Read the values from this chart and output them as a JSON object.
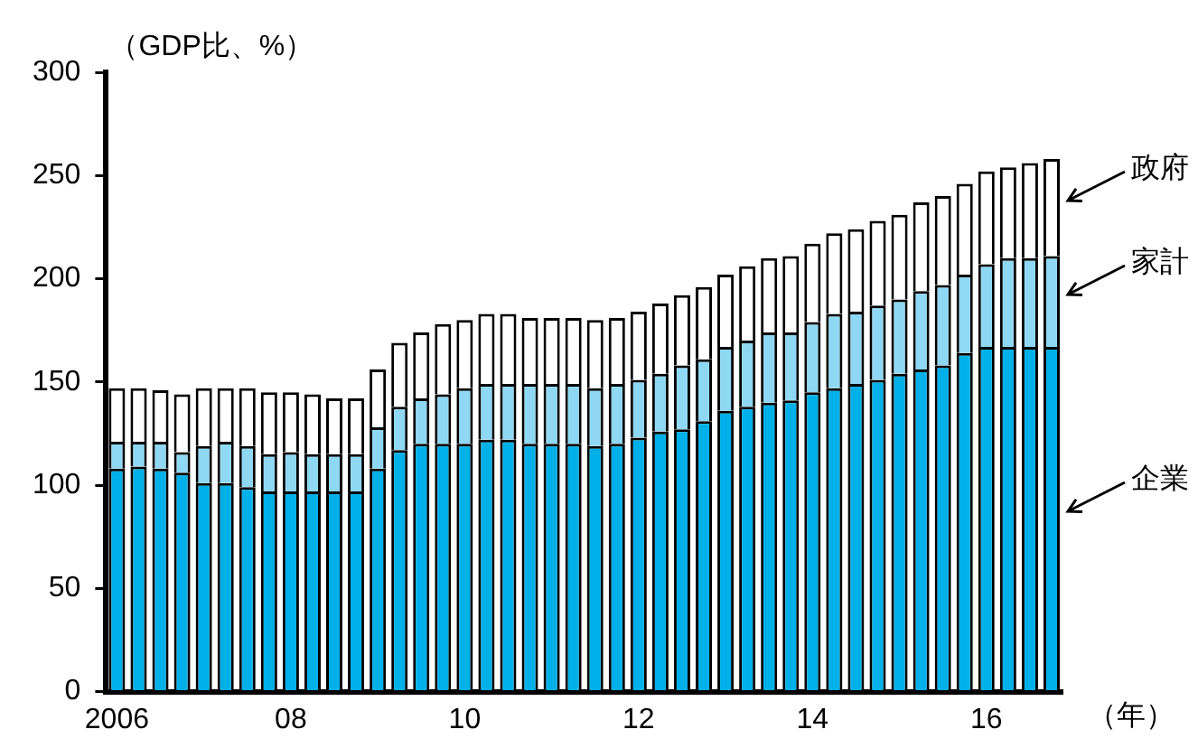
{
  "chart_data": {
    "type": "bar",
    "stacked": true,
    "ylabel": "（GDP比、%）",
    "xlabel": "（年）",
    "categories": [
      "2006",
      null,
      null,
      null,
      null,
      null,
      null,
      null,
      "08",
      null,
      null,
      null,
      null,
      null,
      null,
      null,
      "10",
      null,
      null,
      null,
      null,
      null,
      null,
      null,
      "12",
      null,
      null,
      null,
      null,
      null,
      null,
      null,
      "14",
      null,
      null,
      null,
      null,
      null,
      null,
      null,
      "16",
      null,
      null,
      null
    ],
    "series": [
      {
        "name": "企業",
        "color": "#00b0e8",
        "values": [
          108,
          109,
          108,
          106,
          101,
          101,
          99,
          97,
          97,
          97,
          97,
          97,
          108,
          117,
          120,
          120,
          120,
          122,
          122,
          120,
          120,
          120,
          119,
          120,
          123,
          126,
          127,
          131,
          136,
          138,
          140,
          141,
          145,
          147,
          149,
          151,
          154,
          156,
          158,
          164,
          167,
          167,
          167,
          167
        ]
      },
      {
        "name": "家計",
        "color": "#8fd8f4",
        "values": [
          13,
          12,
          13,
          10,
          18,
          20,
          20,
          18,
          19,
          18,
          18,
          18,
          20,
          21,
          22,
          24,
          27,
          27,
          27,
          29,
          29,
          29,
          28,
          29,
          28,
          28,
          31,
          30,
          31,
          32,
          34,
          33,
          34,
          36,
          35,
          36,
          36,
          38,
          39,
          38,
          40,
          43,
          43,
          44
        ]
      },
      {
        "name": "政府",
        "color": "#ffffff",
        "values": [
          26,
          26,
          25,
          28,
          28,
          26,
          28,
          30,
          29,
          29,
          27,
          27,
          28,
          31,
          32,
          34,
          33,
          34,
          34,
          32,
          32,
          32,
          33,
          32,
          33,
          34,
          34,
          35,
          35,
          36,
          36,
          37,
          38,
          39,
          40,
          41,
          41,
          43,
          43,
          44,
          45,
          44,
          46,
          47
        ]
      }
    ],
    "ylim": [
      0,
      300
    ],
    "yticks": [
      0,
      50,
      100,
      150,
      200,
      250,
      300
    ],
    "grid": false,
    "legend": false
  }
}
